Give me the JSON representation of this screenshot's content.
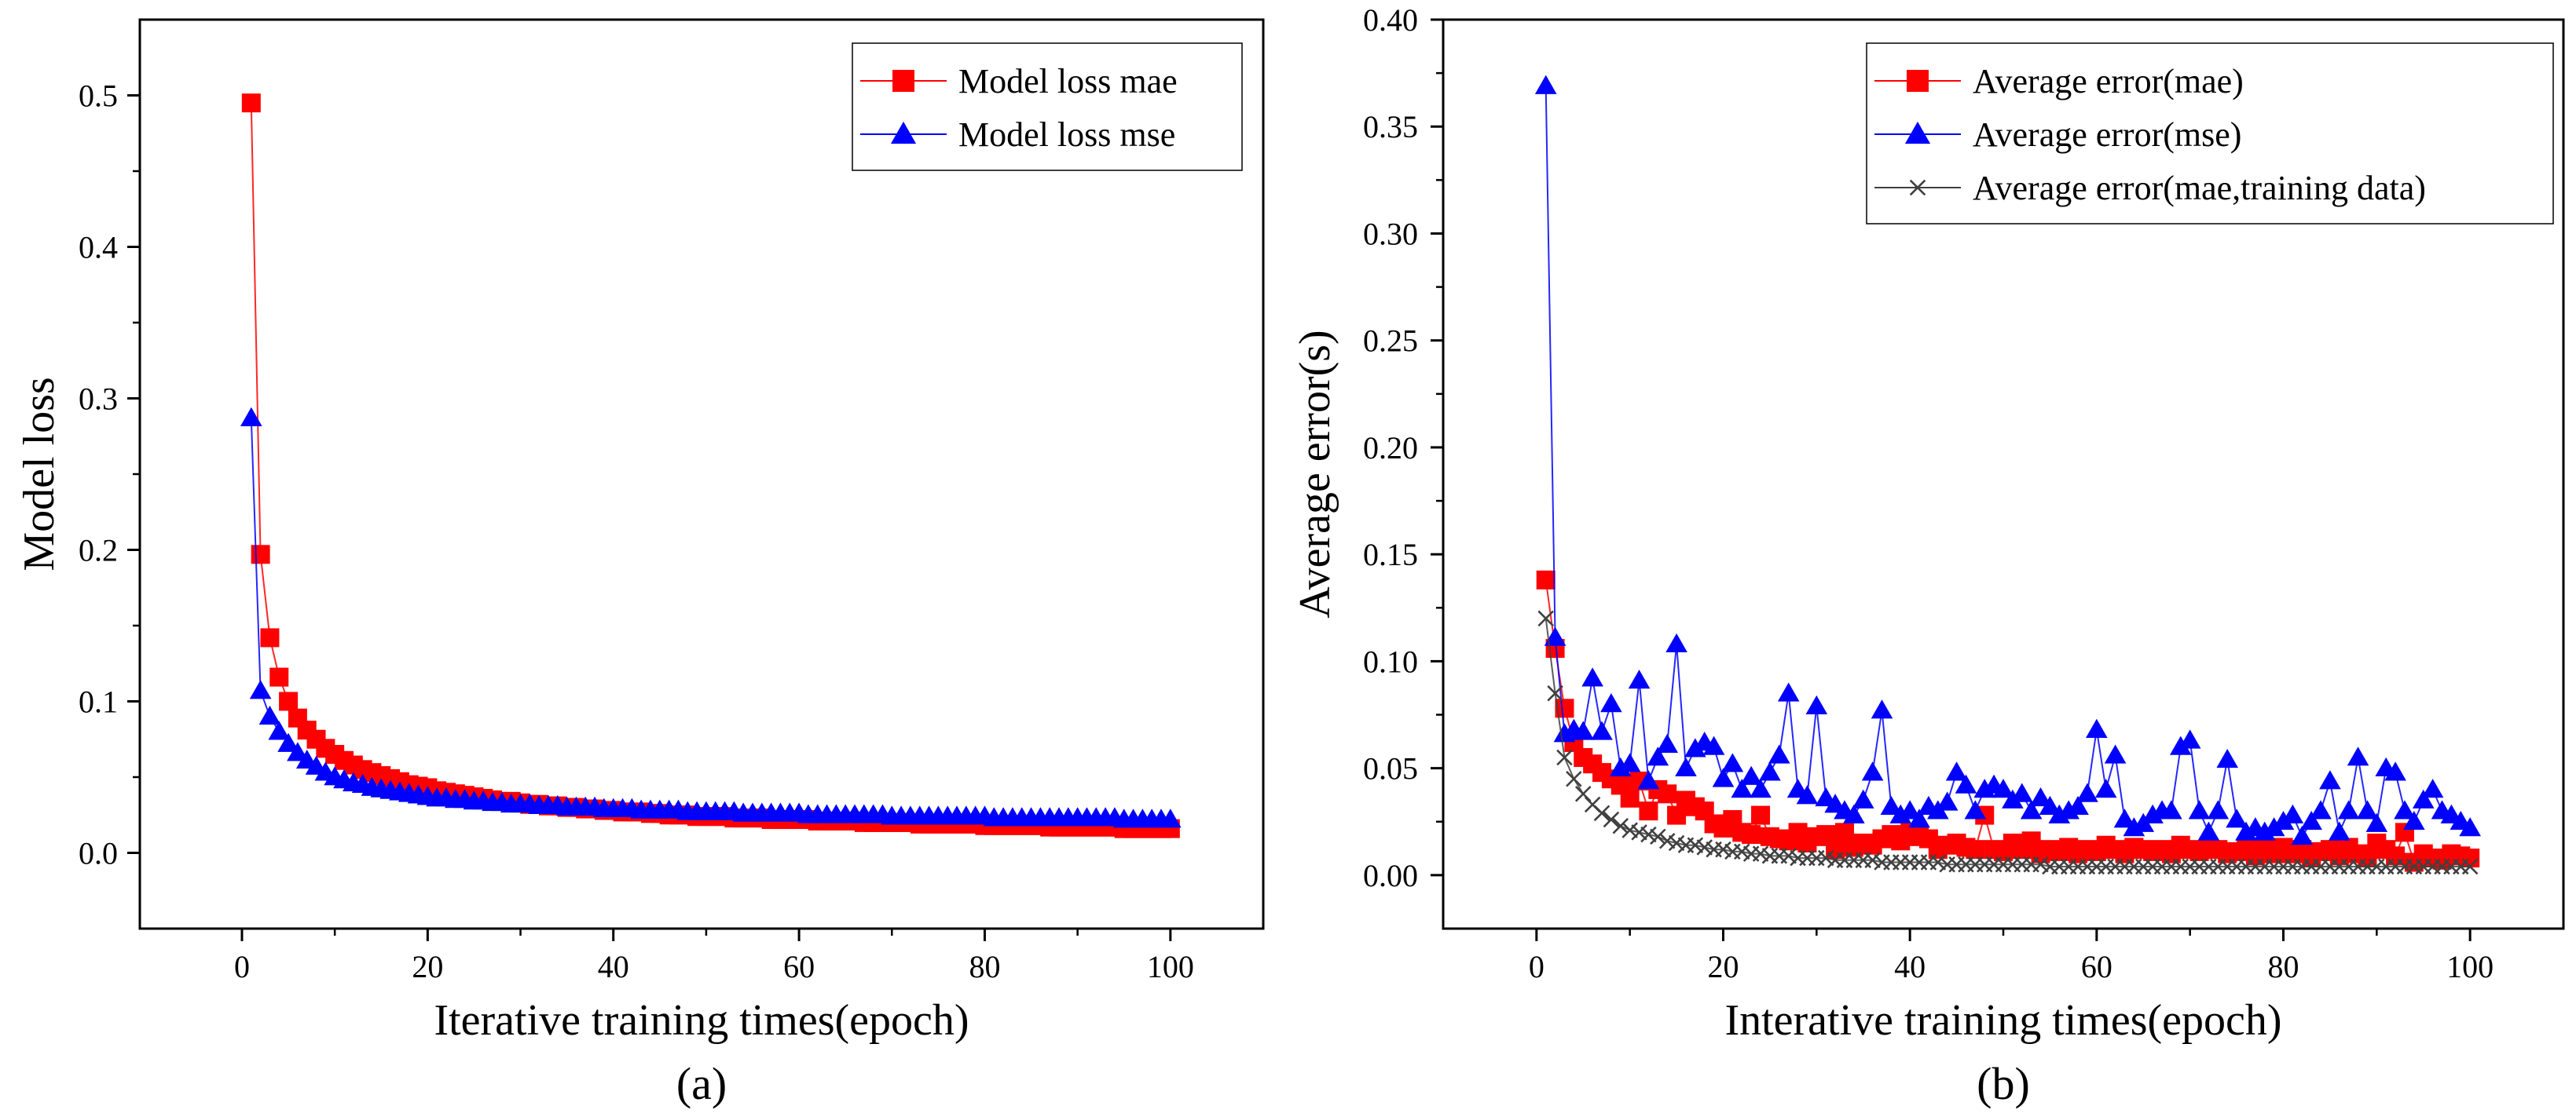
{
  "chart_data": [
    {
      "id": "a",
      "type": "line",
      "panel_label": "(a)",
      "xlabel": "Iterative training times(epoch)",
      "ylabel": "Model loss",
      "xlim": [
        -11,
        110
      ],
      "ylim": [
        -0.05,
        0.55
      ],
      "xticks": [
        0,
        20,
        40,
        60,
        80,
        100
      ],
      "yticks": [
        0.0,
        0.1,
        0.2,
        0.3,
        0.4,
        0.5
      ],
      "ytick_labels": [
        "0.0",
        "0.1",
        "0.2",
        "0.3",
        "0.4",
        "0.5"
      ],
      "grid": false,
      "legend_position": "top-right",
      "series": [
        {
          "name": "Model loss mae",
          "color": "#ff0000",
          "marker": "square",
          "x": [
            1,
            2,
            3,
            4,
            5,
            6,
            7,
            8,
            9,
            10,
            11,
            12,
            13,
            14,
            15,
            16,
            17,
            18,
            19,
            20,
            21,
            22,
            23,
            24,
            25,
            26,
            27,
            28,
            29,
            30,
            31,
            32,
            33,
            34,
            35,
            36,
            37,
            38,
            39,
            40,
            41,
            42,
            43,
            44,
            45,
            46,
            47,
            48,
            49,
            50,
            51,
            52,
            53,
            54,
            55,
            56,
            57,
            58,
            59,
            60,
            61,
            62,
            63,
            64,
            65,
            66,
            67,
            68,
            69,
            70,
            71,
            72,
            73,
            74,
            75,
            76,
            77,
            78,
            79,
            80,
            81,
            82,
            83,
            84,
            85,
            86,
            87,
            88,
            89,
            90,
            91,
            92,
            93,
            94,
            95,
            96,
            97,
            98,
            99,
            100
          ],
          "values": [
            0.495,
            0.197,
            0.142,
            0.116,
            0.1,
            0.089,
            0.081,
            0.075,
            0.069,
            0.065,
            0.061,
            0.058,
            0.055,
            0.053,
            0.051,
            0.049,
            0.047,
            0.045,
            0.044,
            0.043,
            0.041,
            0.04,
            0.039,
            0.038,
            0.037,
            0.036,
            0.035,
            0.034,
            0.034,
            0.033,
            0.032,
            0.032,
            0.031,
            0.031,
            0.03,
            0.03,
            0.029,
            0.029,
            0.028,
            0.028,
            0.027,
            0.027,
            0.027,
            0.026,
            0.026,
            0.025,
            0.025,
            0.025,
            0.024,
            0.024,
            0.024,
            0.024,
            0.023,
            0.023,
            0.023,
            0.023,
            0.022,
            0.022,
            0.022,
            0.022,
            0.022,
            0.021,
            0.021,
            0.021,
            0.021,
            0.021,
            0.02,
            0.02,
            0.02,
            0.02,
            0.02,
            0.02,
            0.019,
            0.019,
            0.019,
            0.019,
            0.019,
            0.019,
            0.019,
            0.018,
            0.018,
            0.018,
            0.018,
            0.018,
            0.018,
            0.018,
            0.017,
            0.017,
            0.017,
            0.017,
            0.017,
            0.017,
            0.017,
            0.017,
            0.016,
            0.016,
            0.016,
            0.016,
            0.016,
            0.016
          ]
        },
        {
          "name": "Model loss mse",
          "color": "#0000ff",
          "marker": "triangle",
          "x": [
            1,
            2,
            3,
            4,
            5,
            6,
            7,
            8,
            9,
            10,
            11,
            12,
            13,
            14,
            15,
            16,
            17,
            18,
            19,
            20,
            21,
            22,
            23,
            24,
            25,
            26,
            27,
            28,
            29,
            30,
            31,
            32,
            33,
            34,
            35,
            36,
            37,
            38,
            39,
            40,
            41,
            42,
            43,
            44,
            45,
            46,
            47,
            48,
            49,
            50,
            51,
            52,
            53,
            54,
            55,
            56,
            57,
            58,
            59,
            60,
            61,
            62,
            63,
            64,
            65,
            66,
            67,
            68,
            69,
            70,
            71,
            72,
            73,
            74,
            75,
            76,
            77,
            78,
            79,
            80,
            81,
            82,
            83,
            84,
            85,
            86,
            87,
            88,
            89,
            90,
            91,
            92,
            93,
            94,
            95,
            96,
            97,
            98,
            99,
            100
          ],
          "values": [
            0.287,
            0.107,
            0.09,
            0.08,
            0.072,
            0.066,
            0.061,
            0.057,
            0.053,
            0.05,
            0.048,
            0.046,
            0.045,
            0.043,
            0.042,
            0.041,
            0.04,
            0.039,
            0.038,
            0.037,
            0.036,
            0.036,
            0.035,
            0.035,
            0.034,
            0.034,
            0.033,
            0.033,
            0.032,
            0.032,
            0.032,
            0.031,
            0.031,
            0.031,
            0.03,
            0.03,
            0.03,
            0.03,
            0.029,
            0.029,
            0.029,
            0.029,
            0.028,
            0.028,
            0.028,
            0.028,
            0.028,
            0.027,
            0.027,
            0.027,
            0.027,
            0.027,
            0.027,
            0.026,
            0.026,
            0.026,
            0.026,
            0.026,
            0.026,
            0.026,
            0.025,
            0.025,
            0.025,
            0.025,
            0.025,
            0.025,
            0.025,
            0.025,
            0.025,
            0.024,
            0.024,
            0.024,
            0.024,
            0.024,
            0.024,
            0.024,
            0.024,
            0.024,
            0.024,
            0.024,
            0.023,
            0.023,
            0.023,
            0.023,
            0.023,
            0.023,
            0.023,
            0.023,
            0.023,
            0.023,
            0.023,
            0.023,
            0.023,
            0.023,
            0.022,
            0.022,
            0.022,
            0.022,
            0.022,
            0.022
          ]
        }
      ]
    },
    {
      "id": "b",
      "type": "line",
      "panel_label": "(b)",
      "xlabel": "Interative training times(epoch)",
      "ylabel": "Average error(s)",
      "xlim": [
        -10,
        110
      ],
      "ylim": [
        -0.025,
        0.4
      ],
      "xticks": [
        0,
        20,
        40,
        60,
        80,
        100
      ],
      "yticks": [
        0.0,
        0.05,
        0.1,
        0.15,
        0.2,
        0.25,
        0.3,
        0.35,
        0.4
      ],
      "ytick_labels": [
        "0.00",
        "0.05",
        "0.10",
        "0.15",
        "0.20",
        "0.25",
        "0.30",
        "0.35",
        "0.40"
      ],
      "grid": false,
      "legend_position": "top-right",
      "series": [
        {
          "name": "Average error(mae)",
          "color": "#ff0000",
          "marker": "square",
          "x": [
            1,
            2,
            3,
            4,
            5,
            6,
            7,
            8,
            9,
            10,
            11,
            12,
            13,
            14,
            15,
            16,
            17,
            18,
            19,
            20,
            21,
            22,
            23,
            24,
            25,
            26,
            27,
            28,
            29,
            30,
            31,
            32,
            33,
            34,
            35,
            36,
            37,
            38,
            39,
            40,
            41,
            42,
            43,
            44,
            45,
            46,
            47,
            48,
            49,
            50,
            51,
            52,
            53,
            54,
            55,
            56,
            57,
            58,
            59,
            60,
            61,
            62,
            63,
            64,
            65,
            66,
            67,
            68,
            69,
            70,
            71,
            72,
            73,
            74,
            75,
            76,
            77,
            78,
            79,
            80,
            81,
            82,
            83,
            84,
            85,
            86,
            87,
            88,
            89,
            90,
            91,
            92,
            93,
            94,
            95,
            96,
            97,
            98,
            99,
            100
          ],
          "values": [
            0.138,
            0.106,
            0.078,
            0.062,
            0.055,
            0.052,
            0.048,
            0.045,
            0.042,
            0.036,
            0.044,
            0.03,
            0.04,
            0.038,
            0.028,
            0.035,
            0.032,
            0.03,
            0.024,
            0.022,
            0.026,
            0.02,
            0.019,
            0.028,
            0.018,
            0.017,
            0.016,
            0.02,
            0.015,
            0.018,
            0.019,
            0.012,
            0.02,
            0.013,
            0.015,
            0.014,
            0.017,
            0.019,
            0.016,
            0.02,
            0.018,
            0.017,
            0.012,
            0.014,
            0.015,
            0.013,
            0.012,
            0.028,
            0.012,
            0.011,
            0.015,
            0.012,
            0.016,
            0.01,
            0.012,
            0.011,
            0.013,
            0.01,
            0.012,
            0.011,
            0.014,
            0.012,
            0.01,
            0.013,
            0.012,
            0.011,
            0.012,
            0.01,
            0.014,
            0.012,
            0.011,
            0.013,
            0.012,
            0.01,
            0.011,
            0.012,
            0.009,
            0.012,
            0.01,
            0.013,
            0.01,
            0.012,
            0.008,
            0.011,
            0.012,
            0.009,
            0.013,
            0.01,
            0.008,
            0.015,
            0.012,
            0.009,
            0.02,
            0.006,
            0.01,
            0.008,
            0.007,
            0.01,
            0.009,
            0.008
          ]
        },
        {
          "name": "Average error(mse)",
          "color": "#0000ff",
          "marker": "triangle",
          "x": [
            1,
            2,
            3,
            4,
            5,
            6,
            7,
            8,
            9,
            10,
            11,
            12,
            13,
            14,
            15,
            16,
            17,
            18,
            19,
            20,
            21,
            22,
            23,
            24,
            25,
            26,
            27,
            28,
            29,
            30,
            31,
            32,
            33,
            34,
            35,
            36,
            37,
            38,
            39,
            40,
            41,
            42,
            43,
            44,
            45,
            46,
            47,
            48,
            49,
            50,
            51,
            52,
            53,
            54,
            55,
            56,
            57,
            58,
            59,
            60,
            61,
            62,
            63,
            64,
            65,
            66,
            67,
            68,
            69,
            70,
            71,
            72,
            73,
            74,
            75,
            76,
            77,
            78,
            79,
            80,
            81,
            82,
            83,
            84,
            85,
            86,
            87,
            88,
            89,
            90,
            91,
            92,
            93,
            94,
            95,
            96,
            97,
            98,
            99,
            100
          ],
          "values": [
            0.369,
            0.111,
            0.066,
            0.068,
            0.067,
            0.092,
            0.067,
            0.08,
            0.05,
            0.052,
            0.091,
            0.044,
            0.055,
            0.061,
            0.108,
            0.05,
            0.059,
            0.062,
            0.06,
            0.045,
            0.052,
            0.04,
            0.046,
            0.04,
            0.048,
            0.056,
            0.085,
            0.04,
            0.037,
            0.079,
            0.036,
            0.033,
            0.03,
            0.028,
            0.035,
            0.048,
            0.077,
            0.032,
            0.028,
            0.03,
            0.026,
            0.032,
            0.03,
            0.034,
            0.048,
            0.042,
            0.03,
            0.04,
            0.042,
            0.04,
            0.035,
            0.038,
            0.03,
            0.036,
            0.032,
            0.028,
            0.03,
            0.032,
            0.038,
            0.068,
            0.04,
            0.056,
            0.026,
            0.022,
            0.024,
            0.028,
            0.03,
            0.03,
            0.06,
            0.063,
            0.03,
            0.02,
            0.03,
            0.054,
            0.026,
            0.02,
            0.022,
            0.02,
            0.022,
            0.025,
            0.028,
            0.018,
            0.025,
            0.03,
            0.044,
            0.02,
            0.03,
            0.055,
            0.03,
            0.024,
            0.05,
            0.048,
            0.03,
            0.025,
            0.035,
            0.04,
            0.03,
            0.028,
            0.025,
            0.022
          ]
        },
        {
          "name": "Average error(mae,training data)",
          "color": "#404040",
          "marker": "x",
          "x": [
            1,
            2,
            3,
            4,
            5,
            6,
            7,
            8,
            9,
            10,
            11,
            12,
            13,
            14,
            15,
            16,
            17,
            18,
            19,
            20,
            21,
            22,
            23,
            24,
            25,
            26,
            27,
            28,
            29,
            30,
            31,
            32,
            33,
            34,
            35,
            36,
            37,
            38,
            39,
            40,
            41,
            42,
            43,
            44,
            45,
            46,
            47,
            48,
            49,
            50,
            51,
            52,
            53,
            54,
            55,
            56,
            57,
            58,
            59,
            60,
            61,
            62,
            63,
            64,
            65,
            66,
            67,
            68,
            69,
            70,
            71,
            72,
            73,
            74,
            75,
            76,
            77,
            78,
            79,
            80,
            81,
            82,
            83,
            84,
            85,
            86,
            87,
            88,
            89,
            90,
            91,
            92,
            93,
            94,
            95,
            96,
            97,
            98,
            99,
            100
          ],
          "values": [
            0.12,
            0.085,
            0.055,
            0.045,
            0.038,
            0.033,
            0.029,
            0.026,
            0.023,
            0.021,
            0.02,
            0.019,
            0.018,
            0.016,
            0.015,
            0.014,
            0.014,
            0.013,
            0.012,
            0.012,
            0.011,
            0.011,
            0.01,
            0.01,
            0.009,
            0.009,
            0.009,
            0.008,
            0.008,
            0.008,
            0.008,
            0.007,
            0.007,
            0.007,
            0.007,
            0.007,
            0.006,
            0.006,
            0.006,
            0.006,
            0.006,
            0.006,
            0.006,
            0.005,
            0.005,
            0.005,
            0.005,
            0.005,
            0.005,
            0.005,
            0.005,
            0.005,
            0.005,
            0.005,
            0.004,
            0.004,
            0.004,
            0.004,
            0.004,
            0.004,
            0.004,
            0.004,
            0.004,
            0.004,
            0.004,
            0.004,
            0.004,
            0.004,
            0.004,
            0.004,
            0.004,
            0.004,
            0.004,
            0.004,
            0.004,
            0.004,
            0.004,
            0.004,
            0.004,
            0.004,
            0.004,
            0.004,
            0.004,
            0.004,
            0.004,
            0.004,
            0.004,
            0.004,
            0.004,
            0.004,
            0.004,
            0.004,
            0.004,
            0.004,
            0.004,
            0.004,
            0.004,
            0.004,
            0.004,
            0.004
          ]
        }
      ]
    }
  ]
}
